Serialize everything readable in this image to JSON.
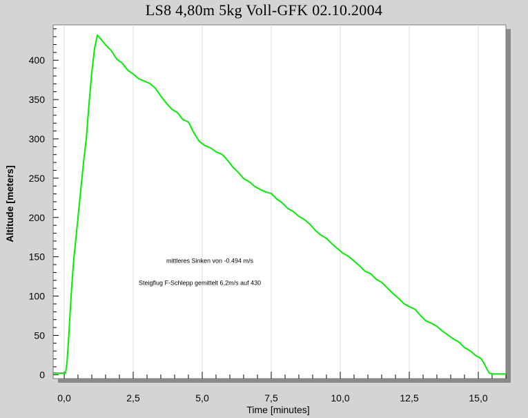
{
  "chart_data": {
    "type": "line",
    "title": "LS8 4,80m 5kg Voll-GFK  02.10.2004",
    "xlabel": "Time [minutes]",
    "ylabel": "Altitude [meters]",
    "xlim": [
      -0.4,
      16.0
    ],
    "ylim": [
      -5,
      445
    ],
    "x_ticks": [
      "0,0",
      "2,5",
      "5,0",
      "7,5",
      "10,0",
      "12,5",
      "15,0"
    ],
    "x_tick_values": [
      0,
      2.5,
      5,
      7.5,
      10,
      12.5,
      15
    ],
    "y_ticks": [
      "0",
      "50",
      "100",
      "150",
      "200",
      "250",
      "300",
      "350",
      "400"
    ],
    "y_tick_values": [
      0,
      50,
      100,
      150,
      200,
      250,
      300,
      350,
      400
    ],
    "grid": "x-major-only",
    "series": [
      {
        "color": "#00ee00",
        "x": [
          -0.4,
          0.05,
          0.1,
          0.15,
          0.2,
          0.25,
          0.3,
          0.35,
          0.4,
          0.5,
          0.6,
          0.7,
          0.8,
          0.9,
          1.0,
          1.1,
          1.2,
          1.3,
          1.5,
          1.7,
          1.9,
          2.1,
          2.3,
          2.5,
          2.7,
          2.9,
          3.1,
          3.3,
          3.5,
          3.7,
          3.9,
          4.1,
          4.3,
          4.5,
          4.7,
          4.9,
          5.1,
          5.3,
          5.5,
          5.7,
          5.8,
          5.9,
          6.1,
          6.3,
          6.5,
          6.7,
          6.9,
          7.1,
          7.3,
          7.5,
          7.7,
          7.9,
          8.1,
          8.3,
          8.5,
          8.7,
          8.9,
          9.1,
          9.3,
          9.5,
          9.7,
          9.9,
          10.1,
          10.3,
          10.5,
          10.7,
          10.9,
          11.1,
          11.3,
          11.5,
          11.7,
          11.9,
          12.1,
          12.3,
          12.5,
          12.7,
          12.9,
          13.1,
          13.3,
          13.5,
          13.7,
          13.9,
          14.1,
          14.3,
          14.5,
          14.7,
          14.9,
          15.1,
          15.2,
          15.3,
          15.4,
          15.5,
          15.7,
          16.0
        ],
        "y": [
          2,
          2,
          15,
          40,
          70,
          100,
          125,
          148,
          165,
          200,
          235,
          270,
          300,
          345,
          385,
          415,
          432,
          428,
          420,
          412,
          402,
          396,
          388,
          382,
          377,
          373,
          371,
          364,
          355,
          345,
          338,
          333,
          325,
          321,
          308,
          296,
          292,
          288,
          284,
          280,
          278,
          273,
          265,
          257,
          250,
          245,
          240,
          235,
          233,
          230,
          224,
          218,
          212,
          207,
          202,
          197,
          192,
          183,
          178,
          173,
          167,
          160,
          155,
          150,
          145,
          138,
          132,
          128,
          122,
          117,
          111,
          103,
          98,
          90,
          87,
          83,
          76,
          68,
          66,
          61,
          56,
          50,
          46,
          41,
          35,
          30,
          25,
          20,
          15,
          8,
          2,
          1,
          1,
          1
        ]
      }
    ],
    "annotations": [
      {
        "text": "mittleres Sinken von  -0.494 m/s",
        "x": 3.7,
        "y": 142
      },
      {
        "text": "Steigflug F-Schlepp gemittelt 6,2m/s auf 430",
        "x": 2.7,
        "y": 114
      }
    ]
  }
}
